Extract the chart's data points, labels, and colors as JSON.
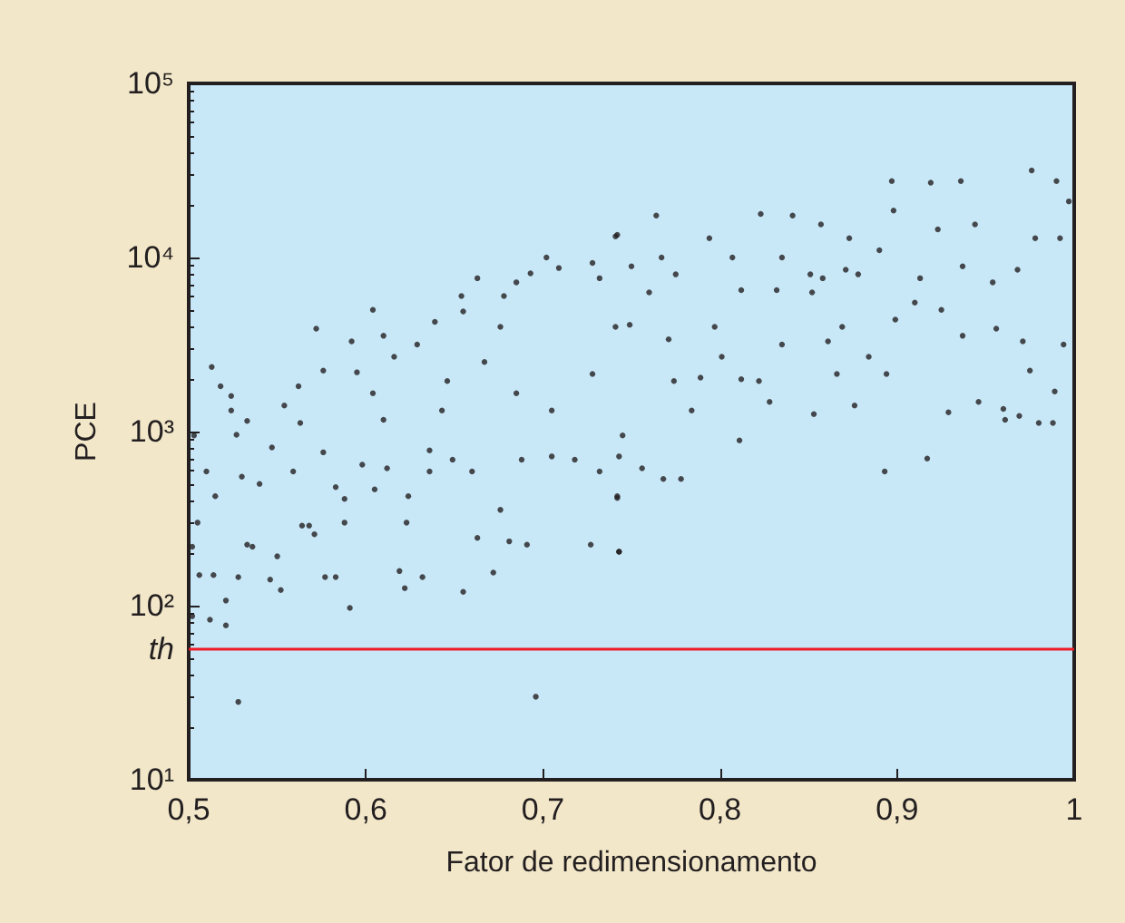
{
  "chart_data": {
    "type": "scatter",
    "xlabel": "Fator de redimensionamento",
    "ylabel": "PCE",
    "log": "y",
    "grid": false,
    "marker": "circle",
    "xlim": [
      0.5,
      1
    ],
    "xticks": [
      {
        "value": 0.5,
        "label": "0,5"
      },
      {
        "value": 0.6,
        "label": "0,6"
      },
      {
        "value": 0.7,
        "label": "0,7"
      },
      {
        "value": 0.8,
        "label": "0,8"
      },
      {
        "value": 0.9,
        "label": "0,9"
      },
      {
        "value": 1,
        "label": "1"
      }
    ],
    "ylim": [
      10,
      100000
    ],
    "yticks": [
      {
        "value": 10,
        "label": "10¹"
      },
      {
        "value": 100,
        "label": "10²"
      },
      {
        "value": 1000,
        "label": "10³"
      },
      {
        "value": 10000,
        "label": "10⁴"
      },
      {
        "value": 100000,
        "label": "10⁵"
      }
    ],
    "ref_lines": [
      {
        "axis": "y",
        "value": 56,
        "label": "th",
        "color": "#ee1c25"
      }
    ],
    "series": [
      {
        "color": "#231f20",
        "x": [
          0.528,
          0.696,
          0.502,
          0.512,
          0.521,
          0.521,
          0.513,
          0.518,
          0.506,
          0.514,
          0.528,
          0.524,
          0.524,
          0.527,
          0.533,
          0.54,
          0.536,
          0.554,
          0.546,
          0.552,
          0.55,
          0.563,
          0.562,
          0.568,
          0.571,
          0.572,
          0.576,
          0.577,
          0.583,
          0.591,
          0.588,
          0.588,
          0.592,
          0.595,
          0.604,
          0.604,
          0.61,
          0.61,
          0.616,
          0.619,
          0.622,
          0.623,
          0.632,
          0.629,
          0.636,
          0.639,
          0.643,
          0.655,
          0.655,
          0.654,
          0.663,
          0.672,
          0.663,
          0.676,
          0.676,
          0.678,
          0.681,
          0.685,
          0.685,
          0.691,
          0.693,
          0.702,
          0.705,
          0.709,
          0.727,
          0.728,
          0.728,
          0.732,
          0.741,
          0.743,
          0.742,
          0.745,
          0.749,
          0.743,
          0.742,
          0.743,
          0.756,
          0.764,
          0.742,
          0.768,
          0.778,
          0.767,
          0.775,
          0.794,
          0.811,
          0.823,
          0.841,
          0.853,
          0.857,
          0.873,
          0.893,
          0.897,
          0.898,
          0.917,
          0.919,
          0.936,
          0.929,
          0.946,
          0.96,
          0.961,
          0.969,
          0.98,
          0.988,
          0.976,
          0.99,
          0.997,
          0.989,
          0.994,
          0.975,
          0.971,
          0.956,
          0.937,
          0.925,
          0.91,
          0.899,
          0.894,
          0.884,
          0.876,
          0.869,
          0.866,
          0.861,
          0.852,
          0.851,
          0.835,
          0.828,
          0.822,
          0.812,
          0.801,
          0.789,
          0.784,
          0.774,
          0.771,
          0.76,
          0.75,
          0.741,
          0.954,
          0.968,
          0.978,
          0.992,
          0.944,
          0.923,
          0.937,
          0.913,
          0.89,
          0.878,
          0.871,
          0.858,
          0.835,
          0.832,
          0.812,
          0.807,
          0.797,
          0.503,
          0.505,
          0.51,
          0.502,
          0.53,
          0.533,
          0.515,
          0.547,
          0.559,
          0.564,
          0.576,
          0.583,
          0.598,
          0.605,
          0.612,
          0.624,
          0.636,
          0.646,
          0.649,
          0.66,
          0.667,
          0.688,
          0.705,
          0.718,
          0.732
        ],
        "values": [
          28,
          30,
          87,
          83,
          77,
          107,
          2350,
          1820,
          150,
          150,
          146,
          1600,
          1320,
          960,
          1150,
          500,
          218,
          1410,
          141,
          123,
          192,
          1120,
          1820,
          288,
          257,
          3900,
          2240,
          146,
          146,
          97,
          300,
          410,
          3300,
          2190,
          5000,
          1660,
          1170,
          3550,
          2690,
          158,
          126,
          300,
          146,
          3160,
          780,
          4270,
          1320,
          120,
          4900,
          6000,
          7600,
          155,
          245,
          355,
          4000,
          6000,
          234,
          1660,
          7200,
          224,
          8100,
          10000,
          1320,
          8700,
          224,
          9300,
          2140,
          7600,
          13200,
          204,
          425,
          950,
          4100,
          204,
          415,
          720,
          615,
          17400,
          13500,
          535,
          535,
          10000,
          8000,
          12900,
          890,
          17800,
          17400,
          1260,
          15500,
          12900,
          590,
          27500,
          18600,
          700,
          26900,
          27500,
          1290,
          1480,
          1350,
          1170,
          1230,
          1120,
          1120,
          31600,
          27500,
          21000,
          1700,
          3160,
          2240,
          3300,
          3900,
          3550,
          5000,
          5500,
          4400,
          2140,
          2690,
          1410,
          4000,
          2140,
          3300,
          6300,
          8000,
          3160,
          1480,
          1950,
          2000,
          2690,
          2040,
          1320,
          1950,
          3390,
          6300,
          8900,
          4000,
          7200,
          8500,
          12900,
          12900,
          15500,
          14500,
          8900,
          7600,
          11000,
          8000,
          8500,
          7600,
          10000,
          6500,
          6500,
          10000,
          4000,
          950,
          300,
          590,
          218,
          550,
          224,
          425,
          810,
          590,
          288,
          760,
          480,
          645,
          465,
          615,
          425,
          590,
          1950,
          690,
          590,
          2510,
          690,
          720,
          690,
          590
        ]
      }
    ]
  }
}
